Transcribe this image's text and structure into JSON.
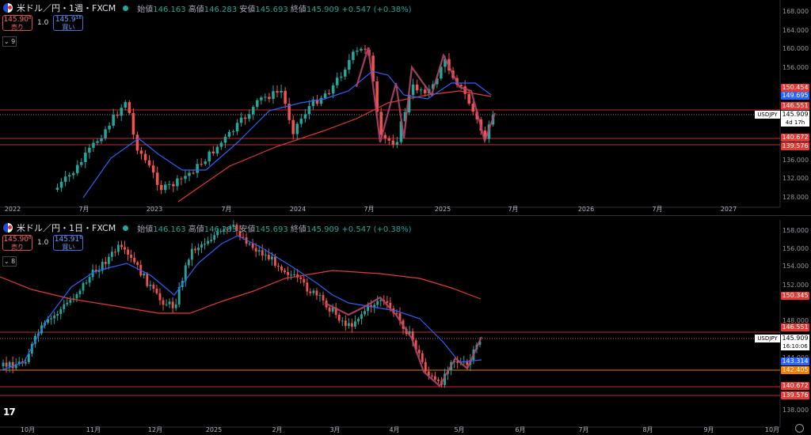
{
  "colors": {
    "up": "#26a69a",
    "down": "#ef5350",
    "ma_blue": "#2962ff",
    "ma_red": "#e53935",
    "overlay": "#b0456b"
  },
  "panes": [
    {
      "id": "weekly",
      "title": "米ドル／円・1週・FXCM",
      "ohlc": {
        "open_label": "始値",
        "open": "146.163",
        "high_label": "高値",
        "high": "146.283",
        "low_label": "安値",
        "low": "145.693",
        "close_label": "終値",
        "close": "145.909",
        "change": "+0.547 (+0.38%)"
      },
      "sell": {
        "price": "145.90⁸",
        "label": "売り"
      },
      "buy": {
        "price": "145.9¹⁸",
        "label": "買い"
      },
      "spread": "1.0",
      "collapse": "⌄ 9",
      "y_ticks": [
        "168.000",
        "164.000",
        "160.000",
        "156.000",
        "136.000",
        "132.000",
        "128.000"
      ],
      "x_ticks": [
        "2022",
        "7月",
        "2023",
        "7月",
        "2024",
        "7月",
        "2025",
        "7月",
        "2026",
        "7月",
        "2027"
      ],
      "price_tags": [
        {
          "value": "150.454",
          "color": "#e53935"
        },
        {
          "value": "149.695",
          "color": "#2962ff"
        },
        {
          "value": "146.551",
          "color": "#e53935"
        },
        {
          "value": "140.672",
          "color": "#e53935"
        },
        {
          "value": "139.576",
          "color": "#e53935"
        }
      ],
      "symbol": "USDJPY",
      "current": {
        "price": "145.909",
        "countdown": "4d 17h"
      }
    },
    {
      "id": "daily",
      "title": "米ドル／円・1日・FXCM",
      "ohlc": {
        "open_label": "始値",
        "open": "146.163",
        "high_label": "高値",
        "high": "146.283",
        "low_label": "安値",
        "low": "145.693",
        "close_label": "終値",
        "close": "145.909",
        "change": "+0.547 (+0.38%)"
      },
      "sell": {
        "price": "145.90⁸",
        "label": "売り"
      },
      "buy": {
        "price": "145.91⁸",
        "label": "買い"
      },
      "spread": "1.0",
      "collapse": "⌄ 8",
      "y_ticks": [
        "158.000",
        "156.000",
        "154.000",
        "152.000",
        "148.000",
        "144.000",
        "138.000"
      ],
      "x_ticks": [
        "10月",
        "11月",
        "12月",
        "2025",
        "2月",
        "3月",
        "4月",
        "5月",
        "6月",
        "7月",
        "8月",
        "9月",
        "10月"
      ],
      "price_tags": [
        {
          "value": "150.345",
          "color": "#e53935"
        },
        {
          "value": "146.551",
          "color": "#e53935"
        },
        {
          "value": "143.314",
          "color": "#2962ff"
        },
        {
          "value": "142.405",
          "color": "#f57c00"
        },
        {
          "value": "140.672",
          "color": "#e53935"
        },
        {
          "value": "139.576",
          "color": "#e53935"
        }
      ],
      "symbol": "USDJPY",
      "current": {
        "price": "145.909",
        "countdown": "16:10:06"
      }
    }
  ],
  "logo": "17"
}
